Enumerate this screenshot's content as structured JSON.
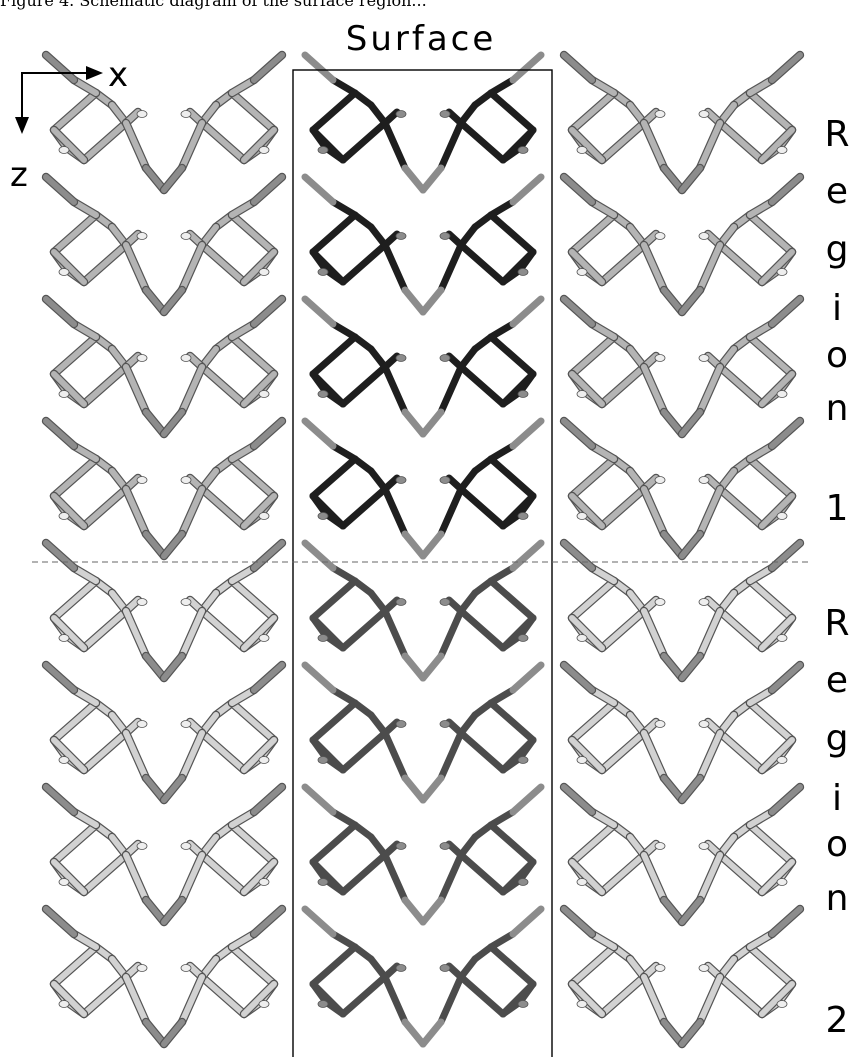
{
  "caption_fragment": "Figure 4. Schematic diagram of the surface region...",
  "title": "Surface",
  "axes": {
    "x_label": "x",
    "z_label": "z"
  },
  "region_1_letters": [
    "R",
    "e",
    "g",
    "i",
    "o",
    "n",
    "1"
  ],
  "region_2_letters": [
    "R",
    "e",
    "g",
    "i",
    "o",
    "n",
    "2"
  ],
  "layout": {
    "columns": 3,
    "rows": 8,
    "rows_per_region": 4
  },
  "colors": {
    "region1_surface": "#1e1e1e",
    "region2_surface": "#4c4c4c",
    "region1_periodic": "#b4b4b4",
    "region2_periodic": "#d2d2d2",
    "link_atom": "#8c8c8c",
    "box": "#000000",
    "divider": "#666666"
  }
}
